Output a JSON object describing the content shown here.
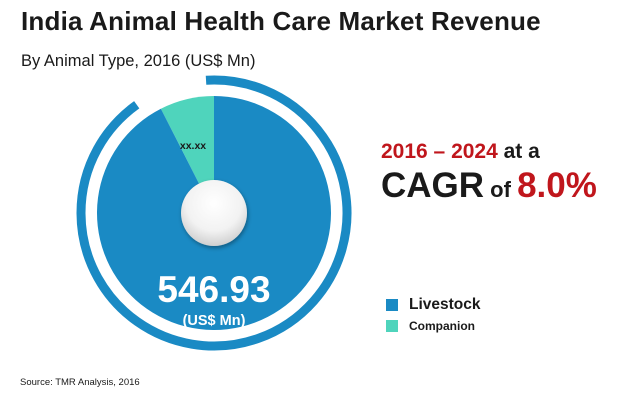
{
  "chart_data": {
    "type": "pie",
    "title": "India Animal Health Care Market Revenue",
    "subtitle": "By Animal Type, 2016 (US$ Mn)",
    "series": [
      {
        "name": "Livestock",
        "value": 546.93,
        "share": 0.925,
        "label": "546.93",
        "unit_label": "(US$ Mn)",
        "color": "#1a8ac4"
      },
      {
        "name": "Companion",
        "value": null,
        "share": 0.075,
        "label": "xx.xx",
        "color": "#4fd4bc"
      }
    ],
    "legend": {
      "position": "right",
      "items": [
        "Livestock",
        "Companion"
      ]
    }
  },
  "cagr": {
    "years": "2016 – 2024",
    "at_a": " at a",
    "cagr_label": "CAGR",
    "of": " of ",
    "value": "8.0%"
  },
  "source": "Source: TMR Analysis, 2016",
  "colors": {
    "primary_blue": "#1a8ac4",
    "companion_teal": "#4fd4bc",
    "accent_red": "#c0161c"
  }
}
